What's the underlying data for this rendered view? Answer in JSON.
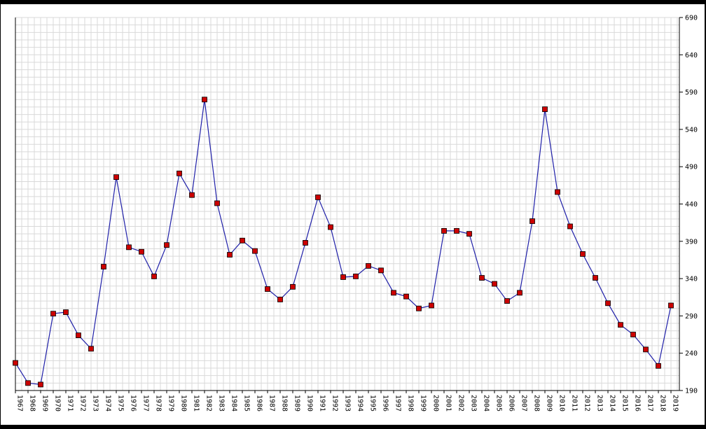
{
  "chart_data": {
    "type": "line",
    "title": "",
    "xlabel": "",
    "ylabel": "",
    "categories": [
      "1967",
      "1968",
      "1969",
      "1970",
      "1971",
      "1972",
      "1973",
      "1974",
      "1975",
      "1976",
      "1977",
      "1978",
      "1979",
      "1980",
      "1981",
      "1982",
      "1983",
      "1984",
      "1985",
      "1986",
      "1987",
      "1988",
      "1989",
      "1990",
      "1991",
      "1992",
      "1993",
      "1994",
      "1995",
      "1996",
      "1997",
      "1998",
      "1999",
      "2000",
      "2001",
      "2002",
      "2003",
      "2004",
      "2005",
      "2006",
      "2007",
      "2008",
      "2009",
      "2010",
      "2011",
      "2012",
      "2013",
      "2014",
      "2015",
      "2016",
      "2017",
      "2018",
      "2019"
    ],
    "series": [
      {
        "values": [
          227,
          200,
          198,
          293,
          295,
          264,
          246,
          356,
          476,
          382,
          376,
          343,
          385,
          481,
          452,
          580,
          441,
          372,
          391,
          377,
          326,
          312,
          329,
          388,
          449,
          409,
          342,
          343,
          357,
          351,
          321,
          316,
          300,
          304,
          404,
          404,
          400,
          341,
          333,
          310,
          321,
          417,
          567,
          456,
          410,
          373,
          341,
          307,
          278,
          265,
          245,
          223,
          304
        ]
      }
    ],
    "ylim": [
      190,
      690
    ],
    "yticks": [
      190,
      240,
      290,
      340,
      390,
      440,
      490,
      540,
      590,
      640,
      690
    ],
    "grid": true,
    "legend": "none",
    "colors": {
      "frame": "#000000",
      "plot_background": "#ffffff",
      "grid": "#d9d9d9",
      "line": "#1f1fa8",
      "marker_fill": "#cc0000",
      "marker_stroke": "#000000"
    }
  }
}
